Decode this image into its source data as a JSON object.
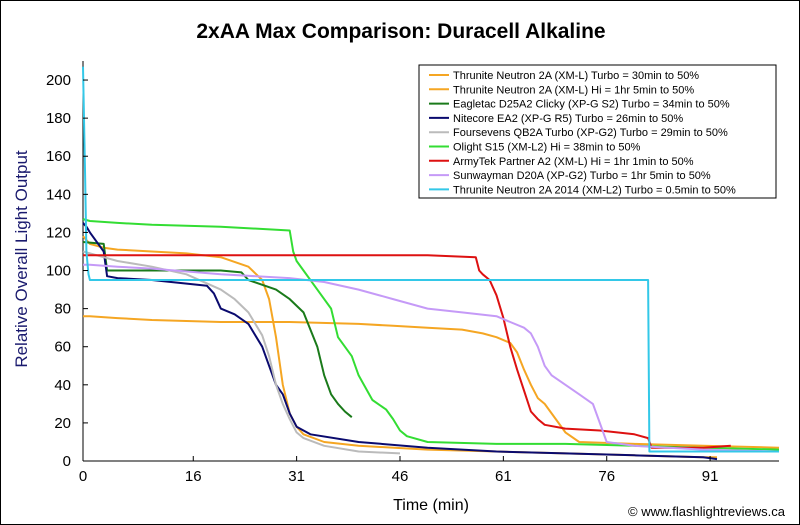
{
  "footer": "© www.flashlightreviews.ca",
  "chart_data": {
    "type": "line",
    "title": "2xAA Max Comparison: Duracell Alkaline",
    "xlabel": "Time (min)",
    "ylabel": "Relative Overall Light Output",
    "xlim": [
      0,
      101
    ],
    "ylim": [
      0,
      210
    ],
    "xticks": [
      0,
      16,
      31,
      46,
      61,
      76,
      91
    ],
    "yticks": [
      0,
      20,
      40,
      60,
      80,
      100,
      120,
      140,
      160,
      180,
      200
    ],
    "grid": false,
    "legend_position": "top-right",
    "series": [
      {
        "name": "Thrunite Neutron 2A (XM-L) Turbo = 30min to 50%",
        "color": "#f5a623",
        "x": [
          0,
          1,
          2,
          3,
          5,
          10,
          15,
          20,
          24,
          26,
          27,
          28,
          29,
          30,
          31,
          32,
          35,
          40,
          50,
          60,
          70,
          80,
          90,
          92
        ],
        "y": [
          118,
          114,
          113,
          112,
          111,
          110,
          109,
          107,
          102,
          95,
          85,
          65,
          40,
          25,
          18,
          14,
          10,
          8,
          6,
          5,
          4,
          3,
          2,
          2
        ]
      },
      {
        "name": "Thrunite Neutron 2A (XM-L) Hi = 1hr 5min to 50%",
        "color": "#f5a623",
        "x": [
          0,
          1,
          5,
          10,
          20,
          30,
          40,
          45,
          50,
          55,
          58,
          60,
          62,
          63,
          64,
          65,
          66,
          67,
          68,
          69,
          70,
          72,
          80,
          90,
          101
        ],
        "y": [
          76,
          76,
          75,
          74,
          73,
          73,
          72,
          71,
          70,
          69,
          67,
          65,
          62,
          57,
          48,
          40,
          33,
          30,
          25,
          20,
          15,
          10,
          9,
          8,
          7
        ]
      },
      {
        "name": "Eagletac D25A2 Clicky (XP-G S2) Turbo = 34min to 50%",
        "color": "#1a7a1a",
        "x": [
          0,
          3,
          3.5,
          5,
          10,
          20,
          23,
          24,
          28,
          30,
          32,
          34,
          35,
          36,
          37,
          38,
          39
        ],
        "y": [
          115,
          114,
          100,
          100,
          100,
          100,
          99,
          95,
          90,
          85,
          78,
          60,
          45,
          35,
          30,
          26,
          23
        ]
      },
      {
        "name": "Nitecore EA2 (XP-G R5) Turbo = 26min to 50%",
        "color": "#0a0a6e",
        "x": [
          0,
          0.5,
          1,
          3,
          3.5,
          5,
          10,
          18,
          19,
          20,
          22,
          24,
          26,
          27,
          28,
          29,
          30,
          31,
          33,
          40,
          50,
          60,
          70,
          80,
          90,
          92
        ],
        "y": [
          125,
          123,
          120,
          110,
          97,
          96,
          95,
          92,
          88,
          80,
          77,
          72,
          60,
          50,
          40,
          35,
          25,
          18,
          14,
          10,
          7,
          5,
          4,
          3,
          2,
          1
        ]
      },
      {
        "name": "Foursevens QB2A Turbo (XP-G2) Turbo = 29min to 50%",
        "color": "#bbbbbb",
        "x": [
          0,
          1,
          3,
          5,
          10,
          15,
          20,
          22,
          24,
          26,
          27,
          28,
          29,
          30,
          31,
          32,
          35,
          40,
          46
        ],
        "y": [
          110,
          109,
          107,
          105,
          102,
          98,
          90,
          85,
          78,
          66,
          55,
          40,
          30,
          22,
          15,
          12,
          8,
          5,
          4
        ]
      },
      {
        "name": "Olight S15 (XM-L2) Hi = 38min to 50%",
        "color": "#33dd33",
        "x": [
          0,
          1,
          5,
          10,
          20,
          30,
          30.5,
          31,
          32,
          34,
          36,
          37,
          38,
          39,
          40,
          42,
          44,
          45,
          46,
          47,
          50,
          60,
          70,
          80,
          90,
          101
        ],
        "y": [
          127,
          126,
          125,
          124,
          123,
          121,
          110,
          105,
          100,
          90,
          80,
          65,
          60,
          55,
          45,
          32,
          27,
          22,
          16,
          13,
          10,
          9,
          9,
          8,
          7,
          6
        ]
      },
      {
        "name": "ArmyTek Partner A2 (XM-L) Hi = 1hr 1min to 50%",
        "color": "#dd1111",
        "x": [
          0,
          5,
          10,
          20,
          30,
          40,
          50,
          57,
          57.5,
          58,
          59,
          60,
          61,
          62,
          63,
          64,
          65,
          66,
          67,
          70,
          75,
          80,
          82,
          82.5,
          83,
          90,
          94
        ],
        "y": [
          108,
          108,
          108,
          108,
          108,
          108,
          108,
          107,
          100,
          98,
          95,
          87,
          75,
          60,
          48,
          37,
          26,
          22,
          19,
          17,
          16,
          14,
          12,
          7,
          7,
          7,
          8
        ]
      },
      {
        "name": "Sunwayman D20A (XP-G2) Turbo = 1hr 5min to 50%",
        "color": "#c59af7",
        "x": [
          0,
          1,
          5,
          10,
          20,
          30,
          35,
          40,
          45,
          50,
          55,
          60,
          62,
          64,
          65,
          66,
          67,
          68,
          70,
          72,
          74,
          75,
          76,
          78,
          80,
          90,
          101
        ],
        "y": [
          103,
          103,
          102,
          101,
          98,
          96,
          94,
          90,
          85,
          80,
          78,
          76,
          73,
          70,
          67,
          60,
          50,
          45,
          40,
          35,
          30,
          20,
          10,
          9,
          8,
          6,
          5
        ]
      },
      {
        "name": "Thrunite Neutron 2A 2014 (XM-L2) Turbo = 0.5min to 50%",
        "color": "#33c8e8",
        "x": [
          0,
          0.3,
          0.5,
          0.8,
          1,
          2,
          5,
          10,
          20,
          30,
          40,
          50,
          60,
          70,
          82,
          82.2,
          85,
          90,
          101
        ],
        "y": [
          207,
          150,
          110,
          98,
          95,
          95,
          95,
          95,
          95,
          95,
          95,
          95,
          95,
          95,
          95,
          5,
          5,
          5,
          5
        ]
      }
    ]
  }
}
